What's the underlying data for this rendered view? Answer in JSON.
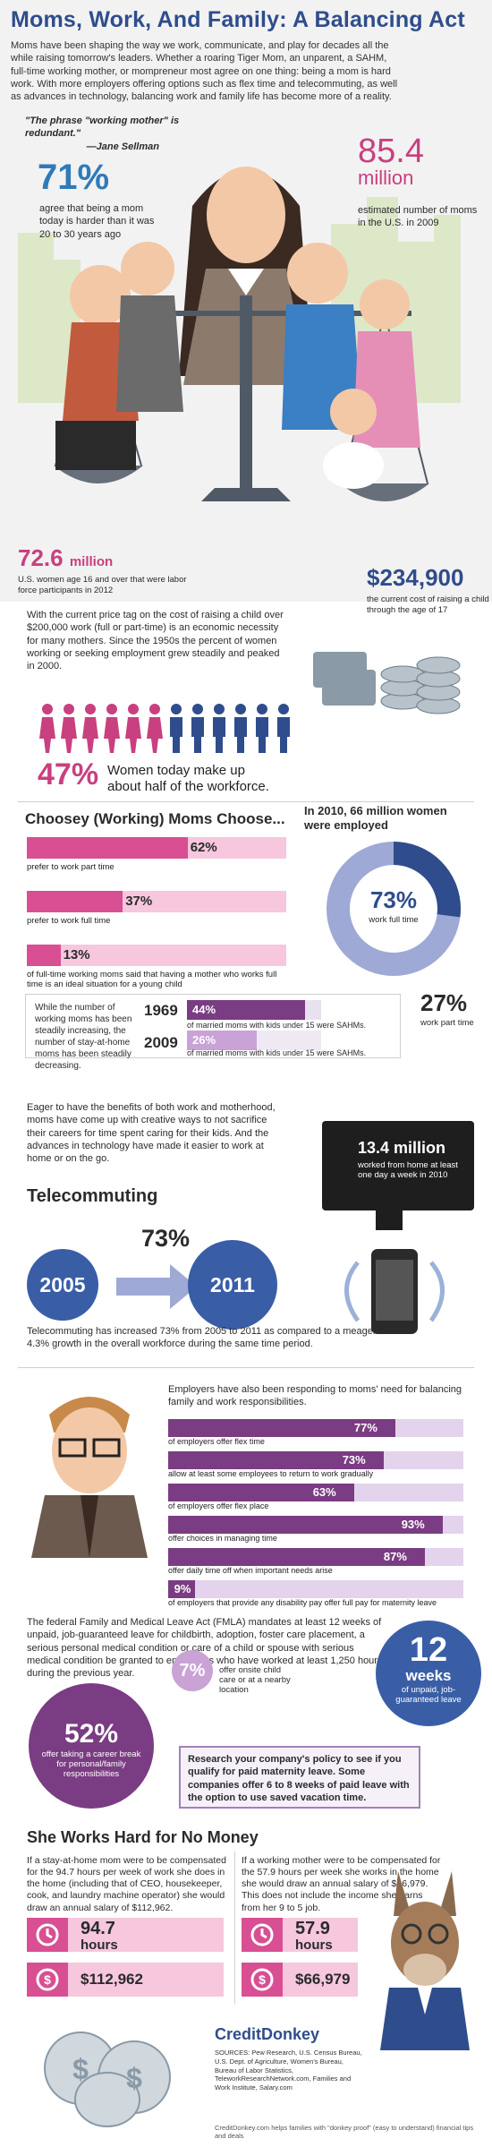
{
  "title": "Moms, Work, And Family: A Balancing Act",
  "intro": "Moms have been shaping the way we work, communicate, and play for decades all the while raising tomorrow's leaders.  Whether a roaring Tiger Mom, an unparent, a SAHM, full-time working mother, or mompreneur most agree on one thing: being a mom is hard work. With more employers offering options such as flex time and telecommuting, as well as advances in technology, balancing work and family life has become more of a reality.",
  "quote": {
    "text": "\"The phrase \"working mother\" is redundant.\"",
    "author": "—Jane Sellman"
  },
  "stats": {
    "s71": {
      "value": "71%",
      "text": "agree that being a mom today is harder than it was 20 to 30 years ago"
    },
    "s854": {
      "value": "85.4",
      "unit": "million",
      "text": "estimated number of moms in the U.S. in 2009"
    },
    "s726": {
      "value": "72.6",
      "unit": "million",
      "text": "U.S. women age 16 and over that were labor force participants in 2012"
    },
    "s2349": {
      "value": "$234,900",
      "text": "the current cost of raising a child through the age of 17"
    }
  },
  "cost_text": "With the current price tag on the cost of raising a child over $200,000 work (full or part-time) is an economic necessity for many mothers. Since the 1950s the percent of women working or seeking employment grew steadily and peaked in 2000.",
  "women": {
    "value": "47%",
    "text": "Women today make up about half of the workforce.",
    "colors": {
      "women": "#c8407f",
      "men": "#2f4d8c"
    }
  },
  "choosey": {
    "heading": "Choosey (Working) Moms Choose...",
    "bars": [
      {
        "value": "62%",
        "pct": 62,
        "label": "prefer to work part time"
      },
      {
        "value": "37%",
        "pct": 37,
        "label": "prefer to work full time"
      },
      {
        "value": "13%",
        "pct": 13,
        "label": "of full-time working moms said that having a mother who works full time is an ideal situation for a young child"
      }
    ]
  },
  "employed": {
    "heading": "In 2010, 66 million women were employed",
    "full": {
      "value": "73%",
      "text": "work full time"
    },
    "part": {
      "value": "27%",
      "text": "work part time"
    }
  },
  "sahm": {
    "text": "While the number of working moms has been steadily increasing, the number of stay-at-home moms has been steadily decreasing.",
    "rows": [
      {
        "year": "1969",
        "value": "44%",
        "pct": 44,
        "text": "of married moms with kids under 15 were SAHMs."
      },
      {
        "year": "2009",
        "value": "26%",
        "pct": 26,
        "text": "of married moms with kids under 15 were SAHMs."
      }
    ]
  },
  "eager": "Eager to have the benefits of both work and motherhood, moms have come up with creative ways to not sacrifice their careers for time spent caring for their kids.  And the advances in technology have made it easier to work at home or on the go.",
  "tele": {
    "heading": "Telecommuting",
    "pct": "73%",
    "from": "2005",
    "to": "2011",
    "monitor_value": "13.4 million",
    "monitor_text": "worked from home at least one day a week in 2010",
    "text": "Telecommuting has increased 73% from 2005 to 2011 as compared to a meager 4.3% growth in the overall workforce during the same time period."
  },
  "employers": {
    "heading": "Employers have also been responding to moms' need for balancing family and work responsibilities.",
    "bars": [
      {
        "value": "77%",
        "pct": 77,
        "label": "of employers offer flex time"
      },
      {
        "value": "73%",
        "pct": 73,
        "label": "allow at least some employees to return to work gradually"
      },
      {
        "value": "63%",
        "pct": 63,
        "label": "of employers offer flex place"
      },
      {
        "value": "93%",
        "pct": 93,
        "label": "offer choices in managing time"
      },
      {
        "value": "87%",
        "pct": 87,
        "label": "offer daily time off when important needs arise"
      },
      {
        "value": "9%",
        "pct": 9,
        "label": "of employers that provide any disability pay offer full pay for maternity leave"
      }
    ]
  },
  "fmla": {
    "text": "The federal Family and Medical Leave Act (FMLA) mandates at least 12 weeks of unpaid, job-guaranteed leave for childbirth, adoption, foster care placement, a serious personal medical condition or care of a child or spouse with serious medical condition be granted to employees who have worked at least 1,250 hours during the previous year.",
    "weeks": {
      "value": "12",
      "unit": "weeks",
      "text": "of unpaid, job-guaranteed leave"
    },
    "career": {
      "value": "52%",
      "text": "offer taking a career break for personal/family responsibilities"
    },
    "childcare": {
      "value": "7%",
      "text": "offer onsite child care or at a nearby location"
    },
    "research": "Research your company's policy to see if you qualify for paid maternity leave.  Some companies offer 6 to 8 weeks of paid leave with the option to use saved vacation time."
  },
  "hard": {
    "heading": "She Works Hard for No Money",
    "sahm_text": "If a stay-at-home mom were to be compensated for the 94.7 hours per week of work she does in the home (including that of CEO, housekeeper, cook, and laundry machine operator) she would draw an annual salary of $112,962.",
    "work_text": "If a working mother were to be compensated for the 57.9 hours per week she works in the home she would draw an annual salary of $66,979.  This does not include the income she earns from her 9 to 5 job.",
    "sahm_hours": "94.7",
    "sahm_money": "$112,962",
    "work_hours": "57.9",
    "work_money": "$66,979",
    "hours_unit": "hours"
  },
  "footer": {
    "logo": "CreditDonkey",
    "sources": "SOURCES: Pew Research, U.S. Census Bureau, U.S. Dept. of Agriculture, Women's Bureau, Bureau of Labor Statistics, TeleworkResearchNetwork.com, Families and Work Institute, Salary.com",
    "tagline": "CreditDonkey.com helps families with \"donkey proof\" (easy to understand) financial tips and deals"
  }
}
